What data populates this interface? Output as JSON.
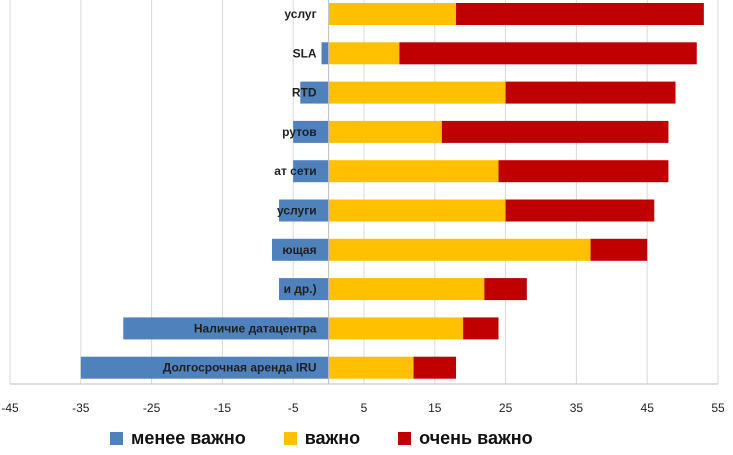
{
  "chart_data": {
    "type": "bar",
    "orientation": "horizontal",
    "stacked": true,
    "categories": [
      "услуг",
      "SLA",
      "RTD",
      "рутов",
      "ат сети",
      "услуги",
      "ющая",
      "и др.)",
      "Наличие датацентра",
      "Долгосрочная аренда IRU"
    ],
    "series": [
      {
        "name": "менее важно",
        "color": "#4f81bd",
        "values": [
          0,
          -1,
          -4,
          -5,
          -5,
          -7,
          -8,
          -7,
          -29,
          -35
        ]
      },
      {
        "name": "важно",
        "color": "#ffc000",
        "values": [
          18,
          10,
          25,
          16,
          24,
          25,
          37,
          22,
          19,
          12
        ]
      },
      {
        "name": "очень важно",
        "color": "#c00000",
        "values": [
          35,
          42,
          24,
          32,
          24,
          21,
          8,
          6,
          5,
          6
        ]
      }
    ],
    "x_ticks": [
      "-45",
      "-35",
      "-25",
      "-15",
      "-5",
      "5",
      "15",
      "25",
      "35",
      "45",
      "55"
    ],
    "xlim": [
      -45,
      55
    ],
    "grid": "vertical",
    "legend_position": "bottom"
  }
}
